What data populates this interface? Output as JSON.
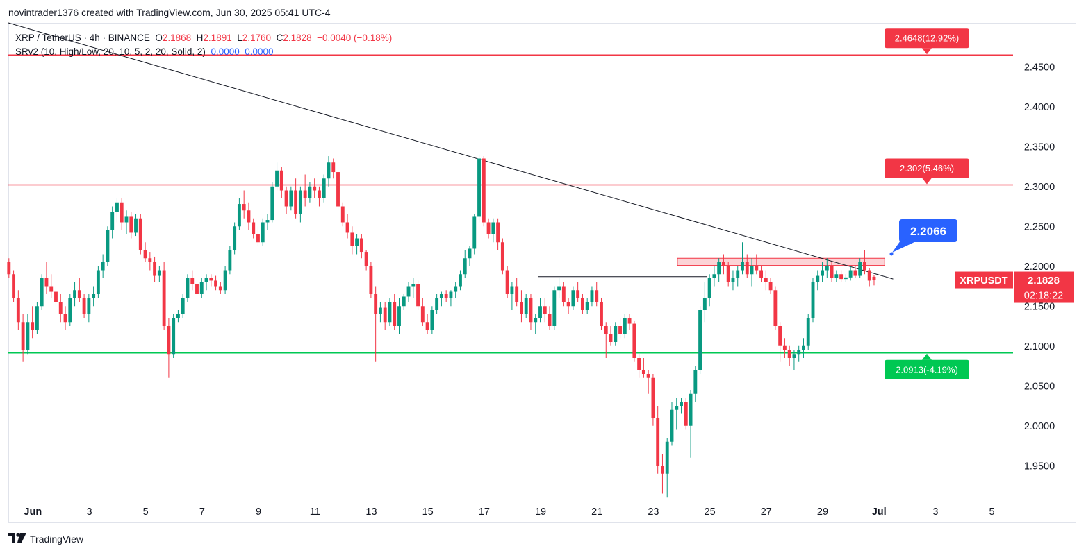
{
  "header": {
    "caption": "novintrader1376 created with TradingView.com, Jun 30, 2025 05:41 UTC-4"
  },
  "legend": {
    "symbol": "XRP / TetherUS · 4h · BINANCE",
    "o_label": "O",
    "o": "2.1868",
    "h_label": "H",
    "h": "2.1891",
    "l_label": "L",
    "l": "2.1760",
    "c_label": "C",
    "c": "2.1828",
    "change": "−0.0040 (−0.18%)",
    "indicator": "SRv2 (10, High/Low, 20, 10, 5, 2, 20, Solid, 2)",
    "ind_val1": "0.0000",
    "ind_val2": "0.0000"
  },
  "footer": {
    "brand_text": "TradingView",
    "brand_icon": "tradingview-logo-icon"
  },
  "colors": {
    "up": "#089981",
    "down": "#f23645",
    "resistance": "#f23645",
    "support": "#00c853",
    "label_blue": "#2962ff"
  },
  "chart_data": {
    "type": "candlestick",
    "symbol": "XRPUSDT",
    "interval": "4h",
    "ylim": [
      1.905,
      2.505
    ],
    "y_ticks": [
      "2.4500",
      "2.4000",
      "2.3500",
      "2.3000",
      "2.2500",
      "2.2000",
      "2.1500",
      "2.1000",
      "2.0500",
      "2.0000",
      "1.9500"
    ],
    "x_ticks": [
      {
        "label": "Jun",
        "day": 1
      },
      {
        "label": "3",
        "day": 3
      },
      {
        "label": "5",
        "day": 5
      },
      {
        "label": "7",
        "day": 7
      },
      {
        "label": "9",
        "day": 9
      },
      {
        "label": "11",
        "day": 11
      },
      {
        "label": "13",
        "day": 13
      },
      {
        "label": "15",
        "day": 15
      },
      {
        "label": "17",
        "day": 17
      },
      {
        "label": "19",
        "day": 19
      },
      {
        "label": "21",
        "day": 21
      },
      {
        "label": "23",
        "day": 23
      },
      {
        "label": "25",
        "day": 25
      },
      {
        "label": "27",
        "day": 27
      },
      {
        "label": "29",
        "day": 29
      },
      {
        "label": "Jul",
        "day": 31
      },
      {
        "label": "3",
        "day": 33
      },
      {
        "label": "5",
        "day": 35
      }
    ],
    "x_range_days": [
      0.13,
      35.75
    ],
    "levels": [
      {
        "name": "resistance-upper",
        "value": 2.4648,
        "label": "2.4648(12.92%)",
        "color": "#f23645"
      },
      {
        "name": "resistance-lower",
        "value": 2.302,
        "label": "2.302(5.46%)",
        "color": "#f23645"
      },
      {
        "name": "support",
        "value": 2.0913,
        "label": "2.0913(-4.19%)",
        "color": "#00c853"
      }
    ],
    "target_label": "2.2066",
    "current": {
      "symbol": "XRPUSDT",
      "price": "2.1828",
      "value": 2.1828,
      "countdown": "02:18:22"
    },
    "trendline": {
      "start": {
        "day": 0.13,
        "price": 2.505
      },
      "end": {
        "day": 31.5,
        "price": 2.184
      }
    },
    "zone": {
      "day_start": 23.85,
      "day_end": 31.2,
      "low": 2.201,
      "high": 2.21
    },
    "horizontal_ray": {
      "day_start": 18.9,
      "day_end": 24.9,
      "price": 2.187
    },
    "candles_start_day": 0.15,
    "candle_step_days": 0.1667,
    "candles": [
      [
        2.205,
        2.21,
        2.185,
        2.19
      ],
      [
        2.19,
        2.195,
        2.155,
        2.16
      ],
      [
        2.16,
        2.17,
        2.12,
        2.13
      ],
      [
        2.13,
        2.14,
        2.08,
        2.095
      ],
      [
        2.095,
        2.14,
        2.09,
        2.13
      ],
      [
        2.13,
        2.15,
        2.11,
        2.12
      ],
      [
        2.12,
        2.155,
        2.115,
        2.15
      ],
      [
        2.15,
        2.19,
        2.145,
        2.185
      ],
      [
        2.185,
        2.205,
        2.165,
        2.175
      ],
      [
        2.175,
        2.19,
        2.16,
        2.168
      ],
      [
        2.168,
        2.175,
        2.15,
        2.155
      ],
      [
        2.155,
        2.165,
        2.13,
        2.14
      ],
      [
        2.14,
        2.15,
        2.12,
        2.13
      ],
      [
        2.13,
        2.165,
        2.125,
        2.16
      ],
      [
        2.16,
        2.18,
        2.15,
        2.17
      ],
      [
        2.17,
        2.185,
        2.155,
        2.16
      ],
      [
        2.16,
        2.165,
        2.135,
        2.14
      ],
      [
        2.14,
        2.165,
        2.13,
        2.16
      ],
      [
        2.16,
        2.175,
        2.15,
        2.165
      ],
      [
        2.165,
        2.2,
        2.16,
        2.195
      ],
      [
        2.195,
        2.215,
        2.185,
        2.205
      ],
      [
        2.205,
        2.25,
        2.2,
        2.245
      ],
      [
        2.245,
        2.275,
        2.235,
        2.268
      ],
      [
        2.268,
        2.285,
        2.255,
        2.28
      ],
      [
        2.28,
        2.285,
        2.245,
        2.255
      ],
      [
        2.255,
        2.27,
        2.24,
        2.262
      ],
      [
        2.262,
        2.268,
        2.235,
        2.242
      ],
      [
        2.242,
        2.265,
        2.238,
        2.26
      ],
      [
        2.26,
        2.265,
        2.215,
        2.22
      ],
      [
        2.22,
        2.23,
        2.205,
        2.21
      ],
      [
        2.21,
        2.218,
        2.195,
        2.205
      ],
      [
        2.205,
        2.212,
        2.18,
        2.188
      ],
      [
        2.188,
        2.2,
        2.18,
        2.195
      ],
      [
        2.195,
        2.205,
        2.12,
        2.125
      ],
      [
        2.125,
        2.135,
        2.06,
        2.09
      ],
      [
        2.09,
        2.14,
        2.085,
        2.135
      ],
      [
        2.135,
        2.145,
        2.13,
        2.14
      ],
      [
        2.14,
        2.165,
        2.135,
        2.16
      ],
      [
        2.16,
        2.19,
        2.155,
        2.185
      ],
      [
        2.185,
        2.195,
        2.17,
        2.178
      ],
      [
        2.178,
        2.185,
        2.16,
        2.165
      ],
      [
        2.165,
        2.185,
        2.16,
        2.18
      ],
      [
        2.18,
        2.19,
        2.17,
        2.185
      ],
      [
        2.185,
        2.19,
        2.175,
        2.182
      ],
      [
        2.182,
        2.188,
        2.17,
        2.175
      ],
      [
        2.175,
        2.18,
        2.165,
        2.17
      ],
      [
        2.17,
        2.2,
        2.165,
        2.195
      ],
      [
        2.195,
        2.225,
        2.19,
        2.22
      ],
      [
        2.22,
        2.255,
        2.215,
        2.25
      ],
      [
        2.25,
        2.285,
        2.245,
        2.278
      ],
      [
        2.278,
        2.295,
        2.26,
        2.27
      ],
      [
        2.27,
        2.28,
        2.245,
        2.255
      ],
      [
        2.255,
        2.26,
        2.235,
        2.24
      ],
      [
        2.24,
        2.25,
        2.225,
        2.23
      ],
      [
        2.23,
        2.26,
        2.225,
        2.255
      ],
      [
        2.255,
        2.265,
        2.245,
        2.258
      ],
      [
        2.258,
        2.305,
        2.255,
        2.3
      ],
      [
        2.3,
        2.33,
        2.295,
        2.32
      ],
      [
        2.32,
        2.325,
        2.285,
        2.295
      ],
      [
        2.295,
        2.3,
        2.265,
        2.275
      ],
      [
        2.275,
        2.3,
        2.27,
        2.295
      ],
      [
        2.295,
        2.31,
        2.26,
        2.265
      ],
      [
        2.265,
        2.3,
        2.255,
        2.295
      ],
      [
        2.295,
        2.315,
        2.275,
        2.285
      ],
      [
        2.285,
        2.305,
        2.28,
        2.3
      ],
      [
        2.3,
        2.31,
        2.285,
        2.295
      ],
      [
        2.295,
        2.3,
        2.275,
        2.285
      ],
      [
        2.285,
        2.315,
        2.28,
        2.31
      ],
      [
        2.31,
        2.338,
        2.3,
        2.33
      ],
      [
        2.33,
        2.335,
        2.31,
        2.318
      ],
      [
        2.318,
        2.32,
        2.27,
        2.275
      ],
      [
        2.275,
        2.28,
        2.25,
        2.255
      ],
      [
        2.255,
        2.265,
        2.235,
        2.242
      ],
      [
        2.242,
        2.25,
        2.215,
        2.225
      ],
      [
        2.225,
        2.24,
        2.215,
        2.235
      ],
      [
        2.235,
        2.24,
        2.21,
        2.218
      ],
      [
        2.218,
        2.22,
        2.195,
        2.2
      ],
      [
        2.2,
        2.205,
        2.16,
        2.165
      ],
      [
        2.165,
        2.175,
        2.08,
        2.14
      ],
      [
        2.14,
        2.155,
        2.13,
        2.148
      ],
      [
        2.148,
        2.155,
        2.12,
        2.13
      ],
      [
        2.13,
        2.16,
        2.125,
        2.155
      ],
      [
        2.155,
        2.165,
        2.12,
        2.125
      ],
      [
        2.125,
        2.16,
        2.115,
        2.15
      ],
      [
        2.15,
        2.165,
        2.145,
        2.162
      ],
      [
        2.162,
        2.18,
        2.155,
        2.175
      ],
      [
        2.175,
        2.185,
        2.16,
        2.178
      ],
      [
        2.178,
        2.182,
        2.145,
        2.15
      ],
      [
        2.15,
        2.16,
        2.125,
        2.13
      ],
      [
        2.13,
        2.14,
        2.115,
        2.12
      ],
      [
        2.12,
        2.15,
        2.115,
        2.145
      ],
      [
        2.145,
        2.165,
        2.14,
        2.16
      ],
      [
        2.16,
        2.168,
        2.15,
        2.165
      ],
      [
        2.165,
        2.17,
        2.155,
        2.16
      ],
      [
        2.16,
        2.17,
        2.15,
        2.168
      ],
      [
        2.168,
        2.18,
        2.16,
        2.175
      ],
      [
        2.175,
        2.195,
        2.17,
        2.19
      ],
      [
        2.19,
        2.22,
        2.185,
        2.21
      ],
      [
        2.21,
        2.225,
        2.2,
        2.222
      ],
      [
        2.222,
        2.265,
        2.215,
        2.262
      ],
      [
        2.262,
        2.34,
        2.255,
        2.335
      ],
      [
        2.335,
        2.338,
        2.25,
        2.255
      ],
      [
        2.255,
        2.26,
        2.235,
        2.24
      ],
      [
        2.24,
        2.26,
        2.23,
        2.255
      ],
      [
        2.255,
        2.26,
        2.22,
        2.23
      ],
      [
        2.23,
        2.235,
        2.19,
        2.195
      ],
      [
        2.195,
        2.2,
        2.16,
        2.165
      ],
      [
        2.165,
        2.18,
        2.145,
        2.175
      ],
      [
        2.175,
        2.185,
        2.15,
        2.155
      ],
      [
        2.155,
        2.17,
        2.13,
        2.14
      ],
      [
        2.14,
        2.165,
        2.135,
        2.16
      ],
      [
        2.16,
        2.165,
        2.12,
        2.13
      ],
      [
        2.13,
        2.14,
        2.115,
        2.135
      ],
      [
        2.135,
        2.16,
        2.13,
        2.15
      ],
      [
        2.15,
        2.16,
        2.13,
        2.14
      ],
      [
        2.14,
        2.15,
        2.12,
        2.125
      ],
      [
        2.125,
        2.175,
        2.12,
        2.17
      ],
      [
        2.17,
        2.185,
        2.16,
        2.175
      ],
      [
        2.175,
        2.18,
        2.15,
        2.155
      ],
      [
        2.155,
        2.16,
        2.14,
        2.15
      ],
      [
        2.15,
        2.175,
        2.145,
        2.17
      ],
      [
        2.17,
        2.18,
        2.155,
        2.16
      ],
      [
        2.16,
        2.165,
        2.14,
        2.145
      ],
      [
        2.145,
        2.16,
        2.14,
        2.155
      ],
      [
        2.155,
        2.175,
        2.15,
        2.17
      ],
      [
        2.17,
        2.18,
        2.15,
        2.155
      ],
      [
        2.155,
        2.16,
        2.12,
        2.125
      ],
      [
        2.125,
        2.13,
        2.085,
        2.115
      ],
      [
        2.115,
        2.125,
        2.1,
        2.105
      ],
      [
        2.105,
        2.13,
        2.1,
        2.125
      ],
      [
        2.125,
        2.135,
        2.11,
        2.115
      ],
      [
        2.115,
        2.14,
        2.11,
        2.135
      ],
      [
        2.135,
        2.14,
        2.12,
        2.128
      ],
      [
        2.128,
        2.132,
        2.08,
        2.085
      ],
      [
        2.085,
        2.09,
        2.06,
        2.07
      ],
      [
        2.07,
        2.085,
        2.06,
        2.065
      ],
      [
        2.065,
        2.07,
        2.04,
        2.06
      ],
      [
        2.06,
        2.065,
        2.0,
        2.01
      ],
      [
        2.01,
        2.025,
        1.94,
        1.95
      ],
      [
        1.95,
        1.965,
        1.915,
        1.94
      ],
      [
        1.94,
        1.985,
        1.91,
        1.98
      ],
      [
        1.98,
        2.03,
        1.975,
        2.02
      ],
      [
        2.02,
        2.035,
        1.995,
        2.025
      ],
      [
        2.025,
        2.035,
        2.015,
        2.03
      ],
      [
        2.03,
        2.035,
        1.995,
        2.0
      ],
      [
        2.0,
        2.045,
        1.96,
        2.04
      ],
      [
        2.04,
        2.075,
        2.03,
        2.07
      ],
      [
        2.07,
        2.15,
        2.065,
        2.145
      ],
      [
        2.145,
        2.18,
        2.13,
        2.16
      ],
      [
        2.16,
        2.19,
        2.15,
        2.185
      ],
      [
        2.185,
        2.2,
        2.175,
        2.19
      ],
      [
        2.19,
        2.21,
        2.18,
        2.205
      ],
      [
        2.205,
        2.215,
        2.19,
        2.2
      ],
      [
        2.2,
        2.205,
        2.175,
        2.18
      ],
      [
        2.18,
        2.195,
        2.17,
        2.185
      ],
      [
        2.185,
        2.2,
        2.175,
        2.195
      ],
      [
        2.195,
        2.23,
        2.19,
        2.205
      ],
      [
        2.205,
        2.215,
        2.185,
        2.19
      ],
      [
        2.19,
        2.21,
        2.175,
        2.2
      ],
      [
        2.2,
        2.215,
        2.19,
        2.195
      ],
      [
        2.195,
        2.2,
        2.18,
        2.185
      ],
      [
        2.185,
        2.195,
        2.17,
        2.18
      ],
      [
        2.18,
        2.185,
        2.165,
        2.17
      ],
      [
        2.17,
        2.175,
        2.12,
        2.125
      ],
      [
        2.125,
        2.13,
        2.08,
        2.1
      ],
      [
        2.1,
        2.11,
        2.085,
        2.095
      ],
      [
        2.095,
        2.1,
        2.075,
        2.085
      ],
      [
        2.085,
        2.095,
        2.07,
        2.09
      ],
      [
        2.09,
        2.1,
        2.08,
        2.095
      ],
      [
        2.095,
        2.11,
        2.085,
        2.1
      ],
      [
        2.1,
        2.14,
        2.095,
        2.135
      ],
      [
        2.135,
        2.185,
        2.13,
        2.18
      ],
      [
        2.18,
        2.195,
        2.17,
        2.188
      ],
      [
        2.188,
        2.205,
        2.18,
        2.195
      ],
      [
        2.195,
        2.21,
        2.185,
        2.2
      ],
      [
        2.2,
        2.205,
        2.18,
        2.185
      ],
      [
        2.185,
        2.195,
        2.18,
        2.19
      ],
      [
        2.19,
        2.195,
        2.18,
        2.184
      ],
      [
        2.184,
        2.19,
        2.18,
        2.186
      ],
      [
        2.186,
        2.2,
        2.182,
        2.195
      ],
      [
        2.195,
        2.2,
        2.185,
        2.188
      ],
      [
        2.188,
        2.21,
        2.185,
        2.205
      ],
      [
        2.205,
        2.22,
        2.19,
        2.195
      ],
      [
        2.195,
        2.198,
        2.175,
        2.182
      ],
      [
        2.1868,
        2.1891,
        2.176,
        2.1828
      ]
    ]
  }
}
